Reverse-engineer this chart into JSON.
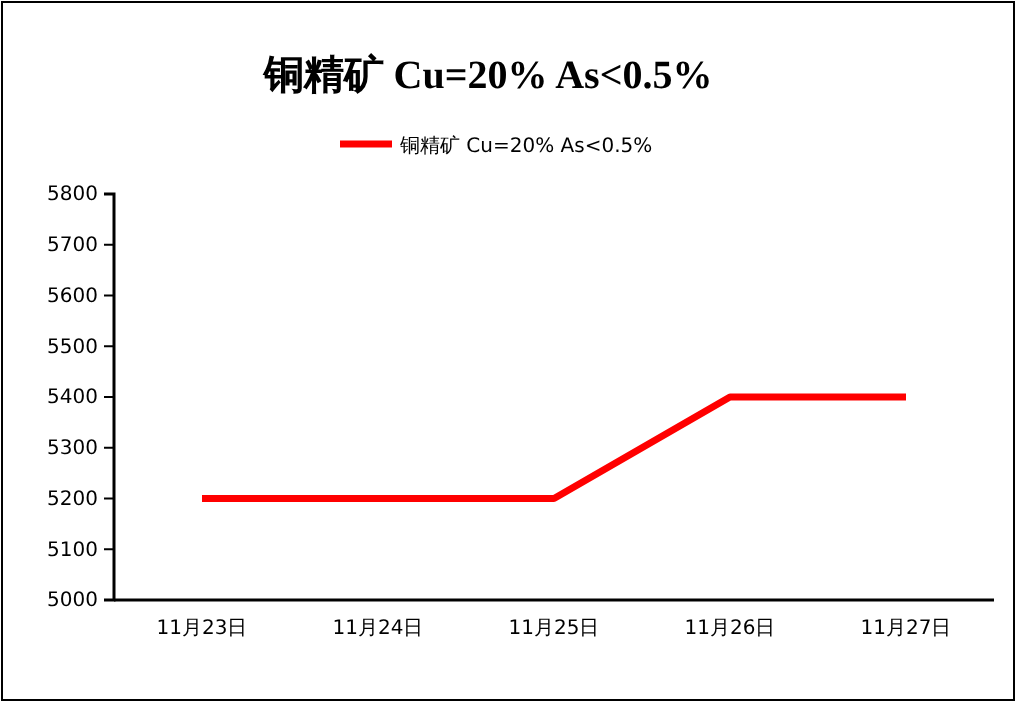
{
  "chart_data": {
    "type": "line",
    "title": "铜精矿 Cu=20% As<0.5%",
    "categories": [
      "11月23日",
      "11月24日",
      "11月25日",
      "11月26日",
      "11月27日"
    ],
    "series": [
      {
        "name": "铜精矿 Cu=20% As<0.5%",
        "color": "#ff0000",
        "values": [
          5200,
          5200,
          5200,
          5400,
          5400
        ]
      }
    ],
    "ylim": [
      5000,
      5800
    ],
    "yticks": [
      5000,
      5100,
      5200,
      5300,
      5400,
      5500,
      5600,
      5700,
      5800
    ],
    "grid": false,
    "legend": "top",
    "marker": "none",
    "line_style": "solid"
  }
}
